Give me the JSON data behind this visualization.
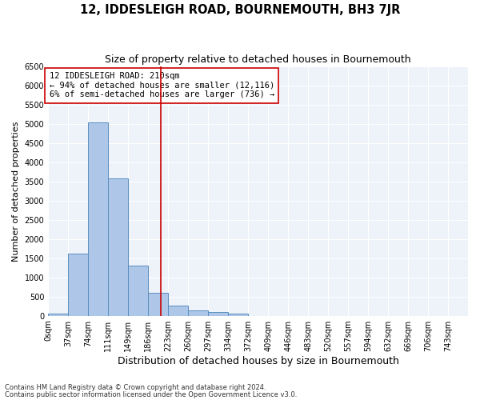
{
  "title": "12, IDDESLEIGH ROAD, BOURNEMOUTH, BH3 7JR",
  "subtitle": "Size of property relative to detached houses in Bournemouth",
  "xlabel": "Distribution of detached houses by size in Bournemouth",
  "ylabel": "Number of detached properties",
  "footnote1": "Contains HM Land Registry data © Crown copyright and database right 2024.",
  "footnote2": "Contains public sector information licensed under the Open Government Licence v3.0.",
  "annotation_line1": "12 IDDESLEIGH ROAD: 210sqm",
  "annotation_line2": "← 94% of detached houses are smaller (12,116)",
  "annotation_line3": "6% of semi-detached houses are larger (736) →",
  "bar_left_edges": [
    0,
    37,
    74,
    111,
    149,
    186,
    223,
    260,
    297,
    334,
    372,
    409,
    446,
    483,
    520,
    557,
    594,
    632,
    669,
    706,
    743
  ],
  "bar_heights": [
    50,
    1620,
    5050,
    3580,
    1300,
    590,
    270,
    140,
    95,
    45,
    0,
    0,
    0,
    0,
    0,
    0,
    0,
    0,
    0,
    0,
    0
  ],
  "bar_color": "#aec6e8",
  "bar_edge_color": "#5a8fc0",
  "vline_color": "#cc0000",
  "vline_x": 210,
  "ylim": [
    0,
    6500
  ],
  "yticks": [
    0,
    500,
    1000,
    1500,
    2000,
    2500,
    3000,
    3500,
    4000,
    4500,
    5000,
    5500,
    6000,
    6500
  ],
  "xtick_labels": [
    "0sqm",
    "37sqm",
    "74sqm",
    "111sqm",
    "149sqm",
    "186sqm",
    "223sqm",
    "260sqm",
    "297sqm",
    "334sqm",
    "372sqm",
    "409sqm",
    "446sqm",
    "483sqm",
    "520sqm",
    "557sqm",
    "594sqm",
    "632sqm",
    "669sqm",
    "706sqm",
    "743sqm"
  ],
  "bg_color": "#eef2f9",
  "grid_color": "#ffffff",
  "fig_bg_color": "#ffffff",
  "annotation_box_edge_color": "#cc0000",
  "title_fontsize": 10.5,
  "subtitle_fontsize": 9,
  "ylabel_fontsize": 8,
  "xlabel_fontsize": 9,
  "tick_fontsize": 7,
  "annotation_fontsize": 7.5,
  "footnote_fontsize": 6
}
